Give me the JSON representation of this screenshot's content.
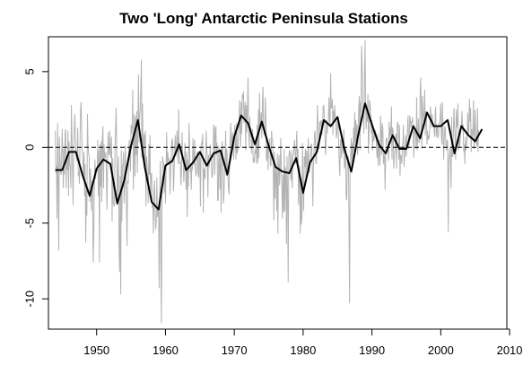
{
  "chart_data": {
    "type": "line",
    "title": "Two 'Long' Antarctic Peninsula Stations",
    "xlabel": "",
    "ylabel": "",
    "xlim": [
      1943,
      2009.6
    ],
    "ylim": [
      -12,
      7.3
    ],
    "x_ticks": [
      1950,
      1960,
      1970,
      1980,
      1990,
      2000,
      2010
    ],
    "y_ticks": [
      -10,
      -5,
      0,
      5
    ],
    "reference_line": {
      "y": 0,
      "style": "dashed"
    },
    "series": [
      {
        "style": "annual",
        "color": "#000000",
        "x": [
          1944,
          1945,
          1946,
          1947,
          1948,
          1949,
          1950,
          1951,
          1952,
          1953,
          1954,
          1955,
          1956,
          1957,
          1958,
          1959,
          1960,
          1961,
          1962,
          1963,
          1964,
          1965,
          1966,
          1967,
          1968,
          1969,
          1970,
          1971,
          1972,
          1973,
          1974,
          1975,
          1976,
          1977,
          1978,
          1979,
          1980,
          1981,
          1982,
          1983,
          1984,
          1985,
          1986,
          1987,
          1988,
          1989,
          1990,
          1991,
          1992,
          1993,
          1994,
          1995,
          1996,
          1997,
          1998,
          1999,
          2000,
          2001,
          2002,
          2003,
          2004,
          2005,
          2006
        ],
        "values": [
          -1.5,
          -1.5,
          -0.3,
          -0.3,
          -1.9,
          -3.2,
          -1.4,
          -0.8,
          -1.1,
          -3.7,
          -2.2,
          0.1,
          1.8,
          -1.3,
          -3.6,
          -4.1,
          -1.2,
          -0.9,
          0.2,
          -1.5,
          -1.0,
          -0.3,
          -1.2,
          -0.4,
          -0.2,
          -1.8,
          0.7,
          2.1,
          1.6,
          0.2,
          1.7,
          0.1,
          -1.3,
          -1.6,
          -1.7,
          -0.7,
          -3.0,
          -1.0,
          -0.3,
          1.8,
          1.4,
          2.0,
          -0.1,
          -1.6,
          0.8,
          2.9,
          1.5,
          0.2,
          -0.4,
          0.8,
          -0.1,
          -0.1,
          1.4,
          0.6,
          2.3,
          1.4,
          1.4,
          1.8,
          -0.4,
          1.4,
          0.8,
          0.4,
          1.2
        ]
      },
      {
        "style": "monthly",
        "color": "#b3b3b3",
        "x_start": 1944,
        "x_step": 0.08333,
        "values": [
          1.1,
          -1.7,
          -1.2,
          -4.7,
          1.6,
          -2.4,
          -6.8,
          0.7,
          -0.5,
          -1.7,
          -1.8,
          -0.4,
          1.2,
          -0.6,
          -2.7,
          -0.1,
          -1.8,
          0.9,
          1.2,
          -2.7,
          -0.6,
          -1.5,
          1.1,
          -3.2,
          0.4,
          -1.1,
          -1.3,
          -2.7,
          2.8,
          0.8,
          -1.4,
          -3.8,
          -0.1,
          1.1,
          2.2,
          0.7,
          -0.4,
          -0.9,
          -0.8,
          1.3,
          -1.9,
          -1.6,
          -2.4,
          0.3,
          2.5,
          3.0,
          1.1,
          -0.3,
          -0.7,
          -2.0,
          -0.3,
          -3.2,
          -1.1,
          -6.3,
          -2.8,
          -4.5,
          2.2,
          0.2,
          -0.4,
          -0.6,
          -3.6,
          -1.4,
          -2.1,
          -4.2,
          -2.4,
          -2.2,
          -7.6,
          -6.0,
          -2.4,
          -0.8,
          -2.1,
          -1.7,
          -1.4,
          -1.6,
          0.5,
          -3.2,
          -0.2,
          -7.6,
          0.2,
          -2.6,
          0.4,
          -3.6,
          0.7,
          1.4,
          -2.7,
          0.2,
          -0.7,
          -0.6,
          -0.3,
          -1.6,
          -4.1,
          -1.4,
          1.0,
          -0.5,
          -0.4,
          1.1,
          -0.5,
          -0.7,
          0.7,
          -4.9,
          -0.7,
          -3.7,
          -3.8,
          -3.9,
          -0.1,
          1.2,
          2.6,
          -0.1,
          -3.8,
          -1.9,
          -0.6,
          -6.1,
          -8.2,
          -1.9,
          -9.7,
          -0.2,
          -4.9,
          -1.3,
          -1.1,
          -0.3,
          -3.7,
          -2.5,
          0.1,
          -2.0,
          -3.7,
          -6.5,
          -2.2,
          -2.4,
          -0.1,
          0.5,
          -0.7,
          -1.6,
          1.5,
          0.9,
          1.4,
          3.8,
          -2.8,
          -0.6,
          2.2,
          -1.9,
          2.0,
          -0.5,
          2.4,
          -1.7,
          1.6,
          4.8,
          0.3,
          2.0,
          2.5,
          4.0,
          5.8,
          -0.7,
          2.9,
          -0.4,
          0.4,
          0.9,
          -1.4,
          1.1,
          -3.9,
          -0.6,
          -1.2,
          -2.1,
          -3.7,
          0.2,
          -1.8,
          0.8,
          -3.1,
          -1.8,
          -1.7,
          -4.0,
          -3.6,
          -5.7,
          -2.9,
          -2.2,
          -4.5,
          -5.4,
          -4.9,
          -2.0,
          -4.6,
          -4.1,
          -4.3,
          -9.3,
          -3.7,
          -0.9,
          -7.8,
          -11.6,
          -3.5,
          -0.6,
          -1.0,
          -1.0,
          -3.0,
          -1.3,
          -3.7,
          -1.9,
          1.0,
          -1.1,
          -0.3,
          -0.9,
          -1.1,
          -0.7,
          -3.1,
          -1.6,
          -0.7,
          0.4,
          0.6,
          -0.3,
          -2.9,
          -1.9,
          -0.3,
          0.8,
          -0.6,
          -0.4,
          1.1,
          0.2,
          -1.1,
          2.5,
          -0.4,
          -1.1,
          -0.9,
          -2.5,
          -1.7,
          1.0,
          -0.5,
          -0.9,
          -2.3,
          -1.3,
          0.3,
          -0.6,
          -2.8,
          -0.3,
          -4.6,
          -0.8,
          -2.6,
          1.6,
          0.3,
          -1.6,
          -1.3,
          -2.8,
          -1.1,
          -1.5,
          0.6,
          -0.7,
          -1.2,
          0.5,
          -1.3,
          -1.9,
          -1.6,
          -0.3,
          -0.3,
          -1.8,
          -2.0,
          -0.4,
          -0.8,
          -3.9,
          0.1,
          0.3,
          0.2,
          0.9,
          -4.3,
          -1.4,
          -1.7,
          -2.1,
          -0.8,
          1.1,
          0.0,
          -0.8,
          -3.3,
          -0.5,
          -1.3,
          -1.0,
          0.2,
          -0.5,
          -0.9,
          -2.0,
          -1.9,
          -1.2,
          1.5,
          1.3,
          -1.8,
          1.1,
          1.4,
          -0.5,
          0.3,
          -3.5,
          -3.5,
          0.1,
          -1.1,
          -2.8,
          -0.2,
          -4.3,
          -0.6,
          0.4,
          -0.3,
          -3.7,
          -3.2,
          -1.6,
          -0.6,
          1.1,
          -1.9,
          -0.1,
          -1.3,
          -2.0,
          -2.7,
          -3.1,
          -0.6,
          0.6,
          1.6,
          -0.2,
          0.2,
          1.0,
          0.4,
          -0.8,
          0.8,
          1.5,
          0.3,
          -0.8,
          1.6,
          -0.4,
          -0.2,
          0.8,
          1.4,
          3.1,
          1.0,
          0.0,
          3.0,
          0.9,
          3.5,
          3.2,
          3.7,
          1.6,
          2.5,
          3.0,
          -0.2,
          2.8,
          1.0,
          2.7,
          4.6,
          1.4,
          0.0,
          2.0,
          0.7,
          1.3,
          -0.4,
          0.7,
          1.2,
          -1.0,
          -0.7,
          -1.0,
          -0.2,
          -0.4,
          0.7,
          -1.1,
          1.5,
          -1.0,
          2.5,
          -0.7,
          3.6,
          1.3,
          1.6,
          2.3,
          0.6,
          2.9,
          4.0,
          1.4,
          0.9,
          0.8,
          3.3,
          2.1,
          -0.9,
          -0.6,
          0.2,
          -1.5,
          0.3,
          -0.2,
          0.6,
          -1.2,
          -1.2,
          1.1,
          0.5,
          0.5,
          -1.5,
          -4.8,
          -0.3,
          -3.4,
          -1.4,
          -1.7,
          -4.2,
          -0.4,
          -5.7,
          -1.6,
          -0.5,
          -2.5,
          -1.3,
          0.6,
          -1.3,
          -2.6,
          -4.7,
          -1.8,
          -4.3,
          -0.1,
          -4.2,
          -1.3,
          -1.9,
          -6.4,
          -0.6,
          -3.4,
          -8.9,
          -0.8,
          -0.2,
          -0.4,
          -1.8,
          -2.2,
          -0.2,
          -2.7,
          -0.7,
          -0.5,
          -0.1,
          0.5,
          -0.3,
          -1.1,
          -0.1,
          1.1,
          -0.7,
          -0.1,
          -3.8,
          -2.0,
          -1.2,
          -5.7,
          -2.4,
          -5.1,
          -4.6,
          0.3,
          -3.0,
          -4.2,
          -0.6,
          -1.3,
          -0.1,
          -2.0,
          -0.2,
          -0.9,
          -1.8,
          0.6,
          -0.5,
          -1.7,
          -0.8,
          -1.0,
          0.2,
          0.2,
          -1.4,
          -3.9,
          -1.3,
          0.0,
          0.9,
          1.1,
          -0.9,
          -1.1,
          0.1,
          2.8,
          1.6,
          1.0,
          -0.1,
          1.7,
          1.3,
          1.8,
          1.7,
          0.8,
          1.7,
          2.7,
          2.8,
          2.1,
          0.8,
          -0.5,
          0.1,
          1.8,
          0.9,
          1.6,
          1.7,
          3.3,
          1.9,
          1.4,
          4.9,
          2.6,
          2.6,
          3.2,
          0.8,
          2.4,
          1.8,
          2.8,
          2.0,
          1.7,
          0.6,
          0.9,
          1.9,
          1.7,
          0.2,
          -1.0,
          -1.9,
          0.5,
          0.5,
          -0.7,
          0.6,
          0.3,
          -0.4,
          1.2,
          -1.4,
          -1.1,
          0.0,
          -3.2,
          -3.5,
          -1.4,
          -0.7,
          -0.6,
          -5.3,
          -10.3,
          -1.4,
          -0.4,
          0.6,
          -1.4,
          0.3,
          -0.7,
          1.3,
          -0.3,
          2.3,
          0.3,
          1.8,
          0.3,
          1.5,
          -0.5,
          1.3,
          2.6,
          3.4,
          -0.2,
          3.0,
          2.3,
          6.7,
          5.5,
          2.2,
          2.5,
          0.9,
          4.7,
          7.1,
          2.7,
          1.2,
          2.6,
          1.7,
          3.5,
          -0.4,
          0.8,
          3.1,
          2.8,
          1.9,
          0.9,
          1.8,
          -0.2,
          1.2,
          0.4,
          0.6,
          1.1,
          1.1,
          0.9,
          -0.1,
          -0.7,
          0.9,
          -1.2,
          0.5,
          0.1,
          -1.2,
          2.1,
          1.1,
          -0.5,
          1.6,
          1.3,
          -1.1,
          -0.4,
          -0.7,
          -2.8,
          -0.1,
          0.6,
          0.6,
          0.4,
          -0.2,
          -0.9,
          1.7,
          0.6,
          1.3,
          0.8,
          2.7,
          -0.8,
          1.3,
          1.1,
          -1.4,
          -0.7,
          -0.4,
          0.7,
          0.9,
          -1.4,
          1.4,
          1.7,
          1.0,
          -0.8,
          1.5,
          -1.9,
          -0.5,
          -0.6,
          -1.1,
          0.0,
          0.3,
          1.5,
          -1.3,
          -0.6,
          -0.1,
          0.8,
          -0.6,
          0.6,
          1.2,
          2.1,
          -0.1,
          0.3,
          2.1,
          1.8,
          1.3,
          1.7,
          1.7,
          2.0,
          0.9,
          -0.7,
          1.1,
          0.9,
          1.0,
          -0.1,
          3.3,
          -0.2,
          0.8,
          1.9,
          0.3,
          0.4,
          3.5,
          4.6,
          2.4,
          -0.1,
          3.4,
          2.4,
          1.7,
          2.2,
          3.8,
          0.8,
          2.4,
          2.1,
          0.2,
          1.1,
          0.5,
          0.7,
          0.6,
          1.4,
          2.7,
          2.0,
          1.3,
          2.2,
          1.5,
          1.4,
          1.5,
          0.7,
          1.9,
          2.7,
          0.7,
          1.3,
          1.3,
          0.6,
          0.8,
          1.6,
          1.6,
          2.0,
          2.9,
          0.8,
          0.2,
          3.0,
          1.1,
          -0.8,
          0.5,
          1.4,
          1.3,
          0.1,
          -0.2,
          0.5,
          0.4,
          -5.6,
          -0.7,
          -0.5,
          0.0,
          -1.2,
          -2.7,
          2.0,
          -0.6,
          -0.6,
          1.0,
          2.6,
          1.3,
          0.8,
          -0.8,
          2.5,
          1.3,
          1.6,
          2.9,
          -0.2,
          0.6,
          0.0,
          0.6,
          1.5,
          1.4,
          2.4,
          1.1,
          1.5,
          -0.3,
          0.2,
          -1.1,
          0.7,
          -0.2,
          0.2,
          0.5,
          2.3,
          0.8,
          1.1,
          3.2,
          1.7,
          2.6,
          -0.3,
          1.2,
          0.6,
          1.0,
          3.1,
          -0.1,
          0.8,
          2.5,
          0.8,
          0.3,
          0.1,
          2.6,
          -0.3,
          1.1,
          1.1
        ]
      }
    ]
  }
}
